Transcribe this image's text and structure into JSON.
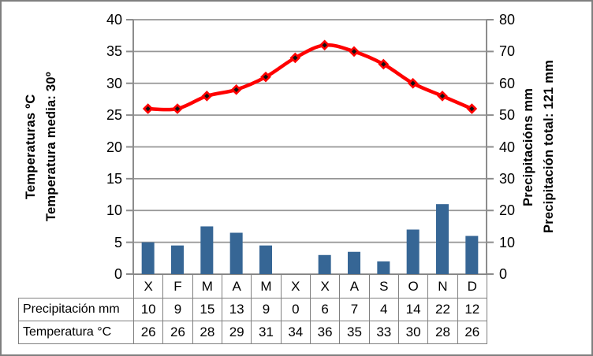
{
  "chart_data": {
    "type": "combo",
    "subtypes": [
      "bar",
      "line"
    ],
    "title": "",
    "categories": [
      "X",
      "F",
      "M",
      "A",
      "M",
      "X",
      "X",
      "A",
      "S",
      "O",
      "N",
      "D"
    ],
    "series": [
      {
        "name": "Precipitación mm",
        "type": "bar",
        "axis": "right",
        "values": [
          10,
          9,
          15,
          13,
          9,
          0,
          6,
          7,
          4,
          14,
          22,
          12
        ]
      },
      {
        "name": "Temperatura °C",
        "type": "line",
        "axis": "left",
        "marker": "diamond",
        "values": [
          26,
          26,
          28,
          29,
          31,
          34,
          36,
          35,
          33,
          30,
          28,
          26
        ]
      }
    ],
    "left_axis": {
      "title_line1": "Temperaturas ºC",
      "title_line2": "Temperatura media: 30º",
      "min": 0,
      "max": 40,
      "step": 5,
      "ticks": [
        "0",
        "5",
        "10",
        "15",
        "20",
        "25",
        "30",
        "35",
        "40"
      ]
    },
    "right_axis": {
      "title_line1": "Precipitacións mm",
      "title_line2": "Precipitación total: 121 mm",
      "min": 0,
      "max": 80,
      "step": 10,
      "ticks": [
        "0",
        "10",
        "20",
        "30",
        "40",
        "50",
        "60",
        "70",
        "80"
      ]
    },
    "grid": true,
    "legend": "none"
  },
  "data_table": {
    "month_header": [
      "X",
      "F",
      "M",
      "A",
      "M",
      "X",
      "X",
      "A",
      "S",
      "O",
      "N",
      "D"
    ],
    "rows": [
      {
        "label": "Precipitación mm",
        "values": [
          "10",
          "9",
          "15",
          "13",
          "9",
          "0",
          "6",
          "7",
          "4",
          "14",
          "22",
          "12"
        ]
      },
      {
        "label": "Temperatura °C",
        "values": [
          "26",
          "26",
          "28",
          "29",
          "31",
          "34",
          "36",
          "35",
          "33",
          "30",
          "28",
          "26"
        ]
      }
    ]
  },
  "colors": {
    "bar": "#366695",
    "line": "#FF0000",
    "marker_fill": "#111111",
    "grid": "#969696",
    "axis": "#8c8c8c",
    "table_border": "#808080",
    "frame": "#7f7f7f",
    "background": "#ffffff",
    "text": "#000000"
  }
}
